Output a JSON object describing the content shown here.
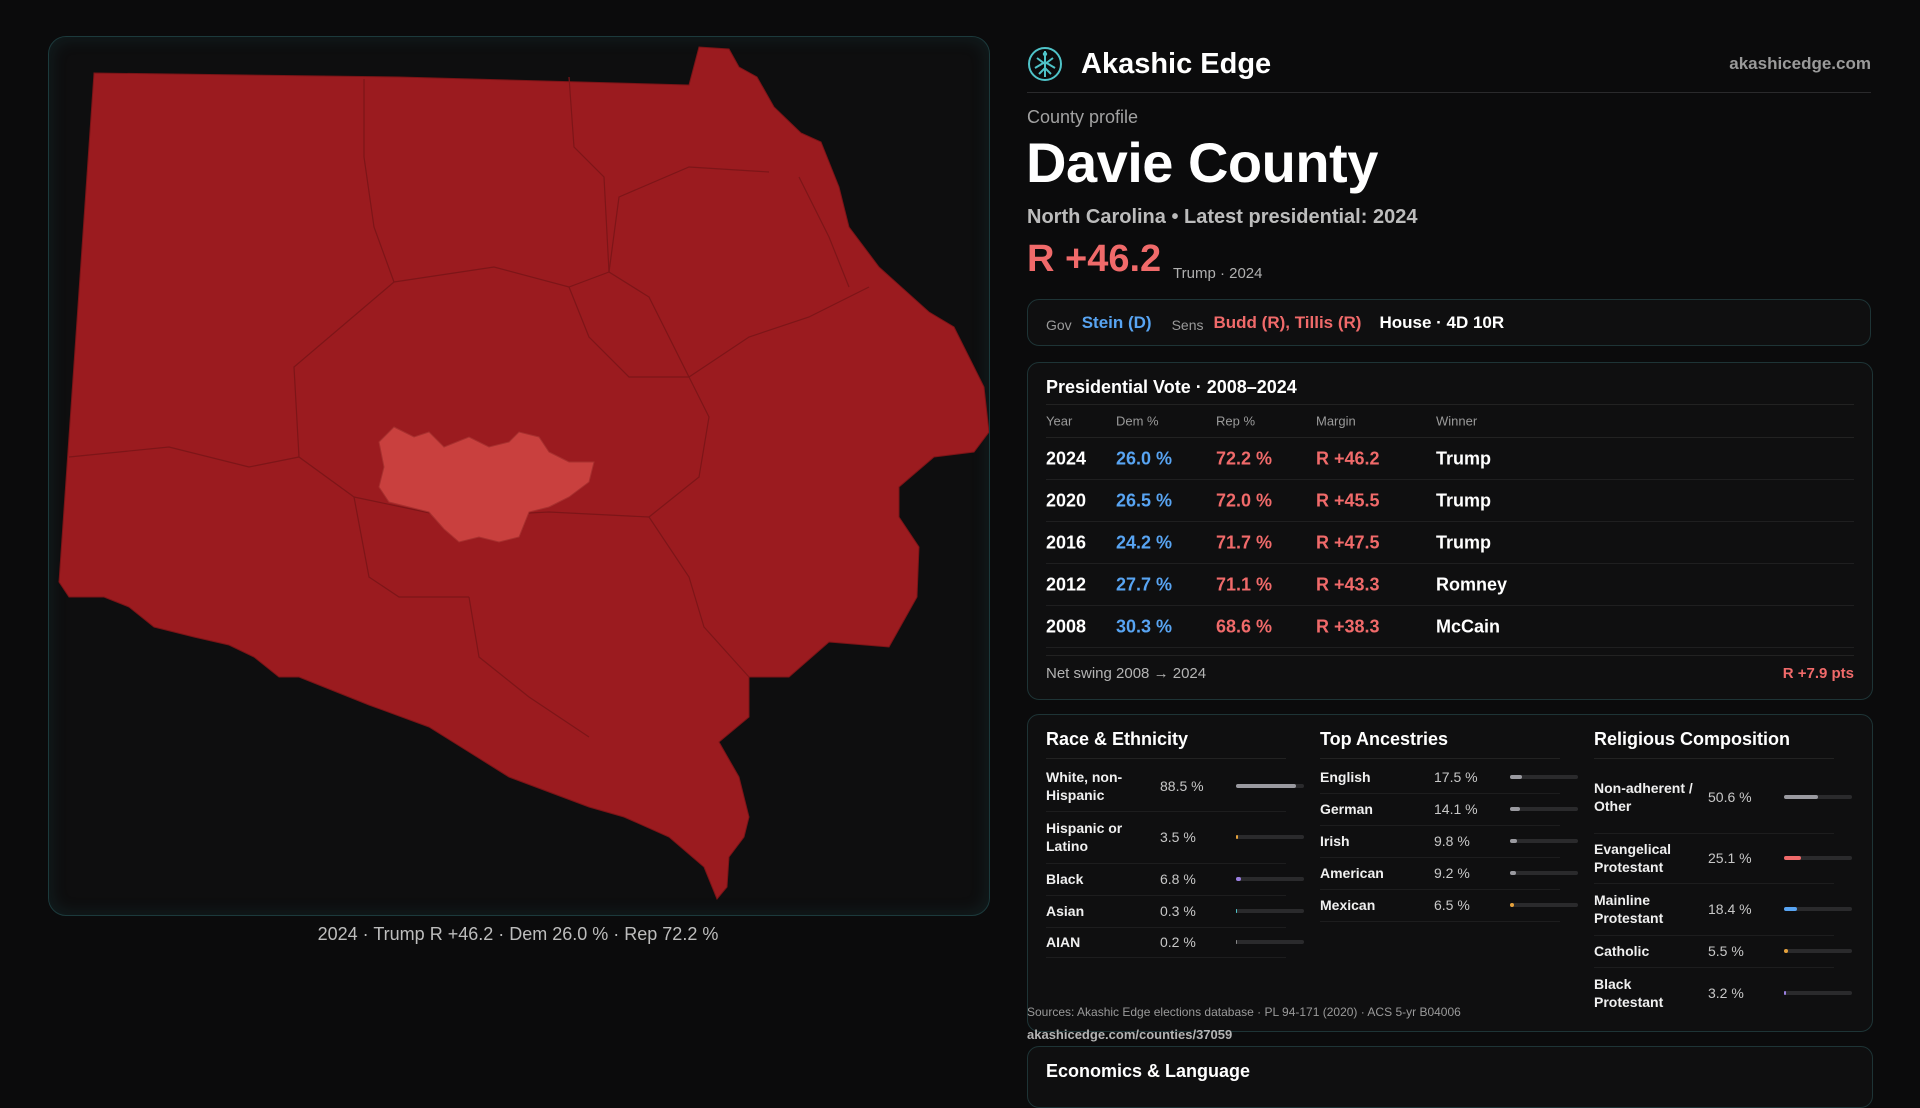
{
  "brand": {
    "name": "Akashic Edge",
    "site": "akashicedge.com",
    "logo_icon": "tree-of-life-icon"
  },
  "profile": {
    "eyebrow": "County profile",
    "title": "Davie County",
    "subtitle": "North Carolina • Latest presidential: 2024",
    "margin": "R +46.2",
    "margin_note": "Trump · 2024"
  },
  "officials": {
    "gov_label": "Gov",
    "gov": "Stein (D)",
    "sens_label": "Sens",
    "sens": "Budd (R), Tillis (R)",
    "house": "House · 4D 10R"
  },
  "presidential": {
    "title": "Presidential Vote · 2008–2024",
    "headers": {
      "year": "Year",
      "dem": "Dem %",
      "rep": "Rep %",
      "margin": "Margin",
      "winner": "Winner"
    },
    "rows": [
      {
        "year": "2024",
        "dem": "26.0 %",
        "rep": "72.2 %",
        "margin": "R +46.2",
        "winner": "Trump"
      },
      {
        "year": "2020",
        "dem": "26.5 %",
        "rep": "72.0 %",
        "margin": "R +45.5",
        "winner": "Trump"
      },
      {
        "year": "2016",
        "dem": "24.2 %",
        "rep": "71.7 %",
        "margin": "R +47.5",
        "winner": "Trump"
      },
      {
        "year": "2012",
        "dem": "27.7 %",
        "rep": "71.1 %",
        "margin": "R +43.3",
        "winner": "Romney"
      },
      {
        "year": "2008",
        "dem": "30.3 %",
        "rep": "68.6 %",
        "margin": "R +38.3",
        "winner": "McCain"
      }
    ],
    "net_swing_label": "Net swing 2008 → 2024",
    "net_swing_value": "R +7.9 pts"
  },
  "race": {
    "title": "Race & Ethnicity",
    "rows": [
      {
        "label": "White, non-Hispanic",
        "pct": "88.5 %",
        "value": 0.885,
        "color": "#9a9aa0"
      },
      {
        "label": "Hispanic or Latino",
        "pct": "3.5 %",
        "value": 0.035,
        "color": "#e6a23c"
      },
      {
        "label": "Black",
        "pct": "6.8 %",
        "value": 0.068,
        "color": "#9a7fe0"
      },
      {
        "label": "Asian",
        "pct": "0.3 %",
        "value": 0.003,
        "color": "#4fc3c8"
      },
      {
        "label": "AIAN",
        "pct": "0.2 %",
        "value": 0.002,
        "color": "#888888"
      }
    ]
  },
  "ancestry": {
    "title": "Top Ancestries",
    "rows": [
      {
        "label": "English",
        "pct": "17.5 %",
        "value": 0.175,
        "color": "#9a9aa0"
      },
      {
        "label": "German",
        "pct": "14.1 %",
        "value": 0.141,
        "color": "#9a9aa0"
      },
      {
        "label": "Irish",
        "pct": "9.8 %",
        "value": 0.098,
        "color": "#9a9aa0"
      },
      {
        "label": "American",
        "pct": "9.2 %",
        "value": 0.092,
        "color": "#9a9aa0"
      },
      {
        "label": "Mexican",
        "pct": "6.5 %",
        "value": 0.065,
        "color": "#e6a23c"
      }
    ]
  },
  "religion": {
    "title": "Religious Composition",
    "rows": [
      {
        "label": "Non-adherent / Other",
        "pct": "50.6 %",
        "value": 0.506,
        "color": "#9a9aa0"
      },
      {
        "label": "Evangelical Protestant",
        "pct": "25.1 %",
        "value": 0.251,
        "color": "#f06a6a"
      },
      {
        "label": "Mainline Protestant",
        "pct": "18.4 %",
        "value": 0.184,
        "color": "#58a4f2"
      },
      {
        "label": "Catholic",
        "pct": "5.5 %",
        "value": 0.055,
        "color": "#e6a23c"
      },
      {
        "label": "Black Protestant",
        "pct": "3.2 %",
        "value": 0.032,
        "color": "#9a7fe0"
      }
    ]
  },
  "sources": {
    "text": "Sources: Akashic Edge elections database · PL 94-171 (2020) · ACS 5-yr B04006",
    "url": "akashicedge.com/counties/37059"
  },
  "economics": {
    "title": "Economics & Language"
  },
  "map": {
    "caption": "2024 · Trump R +46.2 · Dem 26.0 % · Rep 72.2 %",
    "fill_color": "#9b1b1f",
    "town_color": "#c9403e"
  }
}
